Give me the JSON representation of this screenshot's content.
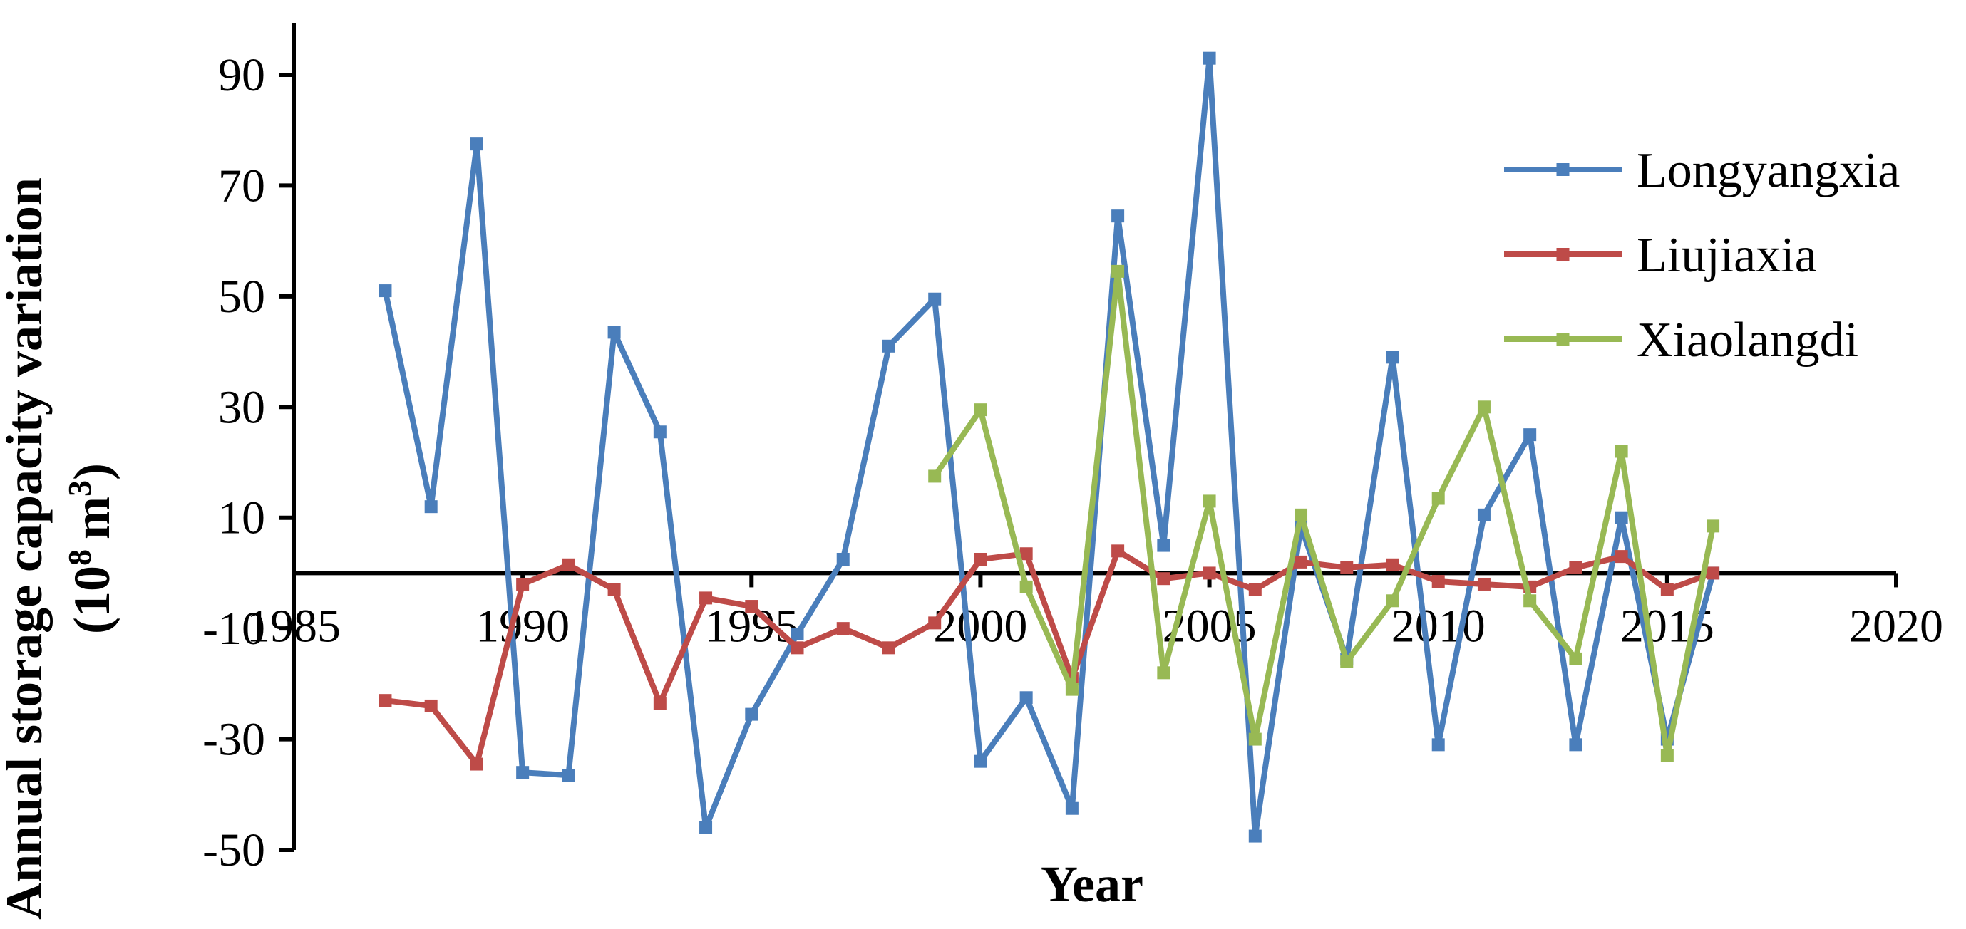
{
  "chart_data": {
    "type": "line",
    "xlabel": "Year",
    "ylabel": "Annual storage capacity variation",
    "ylabel_unit_base": "10",
    "ylabel_unit_exp1": "8",
    "ylabel_unit_m": "m",
    "ylabel_unit_exp2": "3",
    "xlim": [
      1985,
      2020
    ],
    "ylim": [
      -50,
      90
    ],
    "x_ticks": [
      1985,
      1990,
      1995,
      2000,
      2005,
      2010,
      2015,
      2020
    ],
    "x_tick_labels": [
      "1985",
      "1990",
      "1995",
      "2000",
      "2005",
      "2010",
      "2015",
      "2020"
    ],
    "y_ticks": [
      -50,
      -30,
      -10,
      10,
      30,
      50,
      70,
      90
    ],
    "y_tick_labels": [
      "-50",
      "-30",
      "-10",
      "10",
      "30",
      "50",
      "70",
      "90"
    ],
    "grid": false,
    "legend_position": "top-right",
    "series": [
      {
        "name": "Longyangxia",
        "color": "#4A7EBB",
        "x": [
          1987,
          1988,
          1989,
          1990,
          1991,
          1992,
          1993,
          1994,
          1995,
          1996,
          1997,
          1998,
          1999,
          2000,
          2001,
          2002,
          2003,
          2004,
          2005,
          2006,
          2007,
          2008,
          2009,
          2010,
          2011,
          2012,
          2013,
          2014,
          2015,
          2016
        ],
        "y": [
          51,
          12,
          77.5,
          -36,
          -36.5,
          43.5,
          25.5,
          -46,
          -25.5,
          -11,
          2.5,
          41,
          49.5,
          -34,
          -22.5,
          -42.5,
          64.5,
          5,
          93,
          -47.5,
          8.5,
          -15.5,
          39,
          -31,
          10.5,
          25,
          -31,
          10,
          -30,
          0
        ]
      },
      {
        "name": "Liujiaxia",
        "color": "#BE4B48",
        "x": [
          1987,
          1988,
          1989,
          1990,
          1991,
          1992,
          1993,
          1994,
          1995,
          1996,
          1997,
          1998,
          1999,
          2000,
          2001,
          2002,
          2003,
          2004,
          2005,
          2006,
          2007,
          2008,
          2009,
          2010,
          2011,
          2012,
          2013,
          2014,
          2015,
          2016
        ],
        "y": [
          -23,
          -24,
          -34.5,
          -2,
          1.5,
          -3,
          -23.5,
          -4.5,
          -6,
          -13.5,
          -10,
          -13.5,
          -9,
          2.5,
          3.5,
          -19,
          4,
          -1,
          0,
          -3,
          2,
          1,
          1.5,
          -1.5,
          -2,
          -2.5,
          1,
          3,
          -3,
          0
        ]
      },
      {
        "name": "Xiaolangdi",
        "color": "#98B954",
        "x": [
          1999,
          2000,
          2001,
          2002,
          2003,
          2004,
          2005,
          2006,
          2007,
          2008,
          2009,
          2010,
          2011,
          2012,
          2013,
          2014,
          2015,
          2016
        ],
        "y": [
          17.5,
          29.5,
          -2.5,
          -21,
          54.5,
          -18,
          13,
          -30,
          10.5,
          -16,
          -5,
          13.5,
          30,
          -5,
          -15.5,
          22,
          -33,
          8.5
        ]
      }
    ]
  }
}
